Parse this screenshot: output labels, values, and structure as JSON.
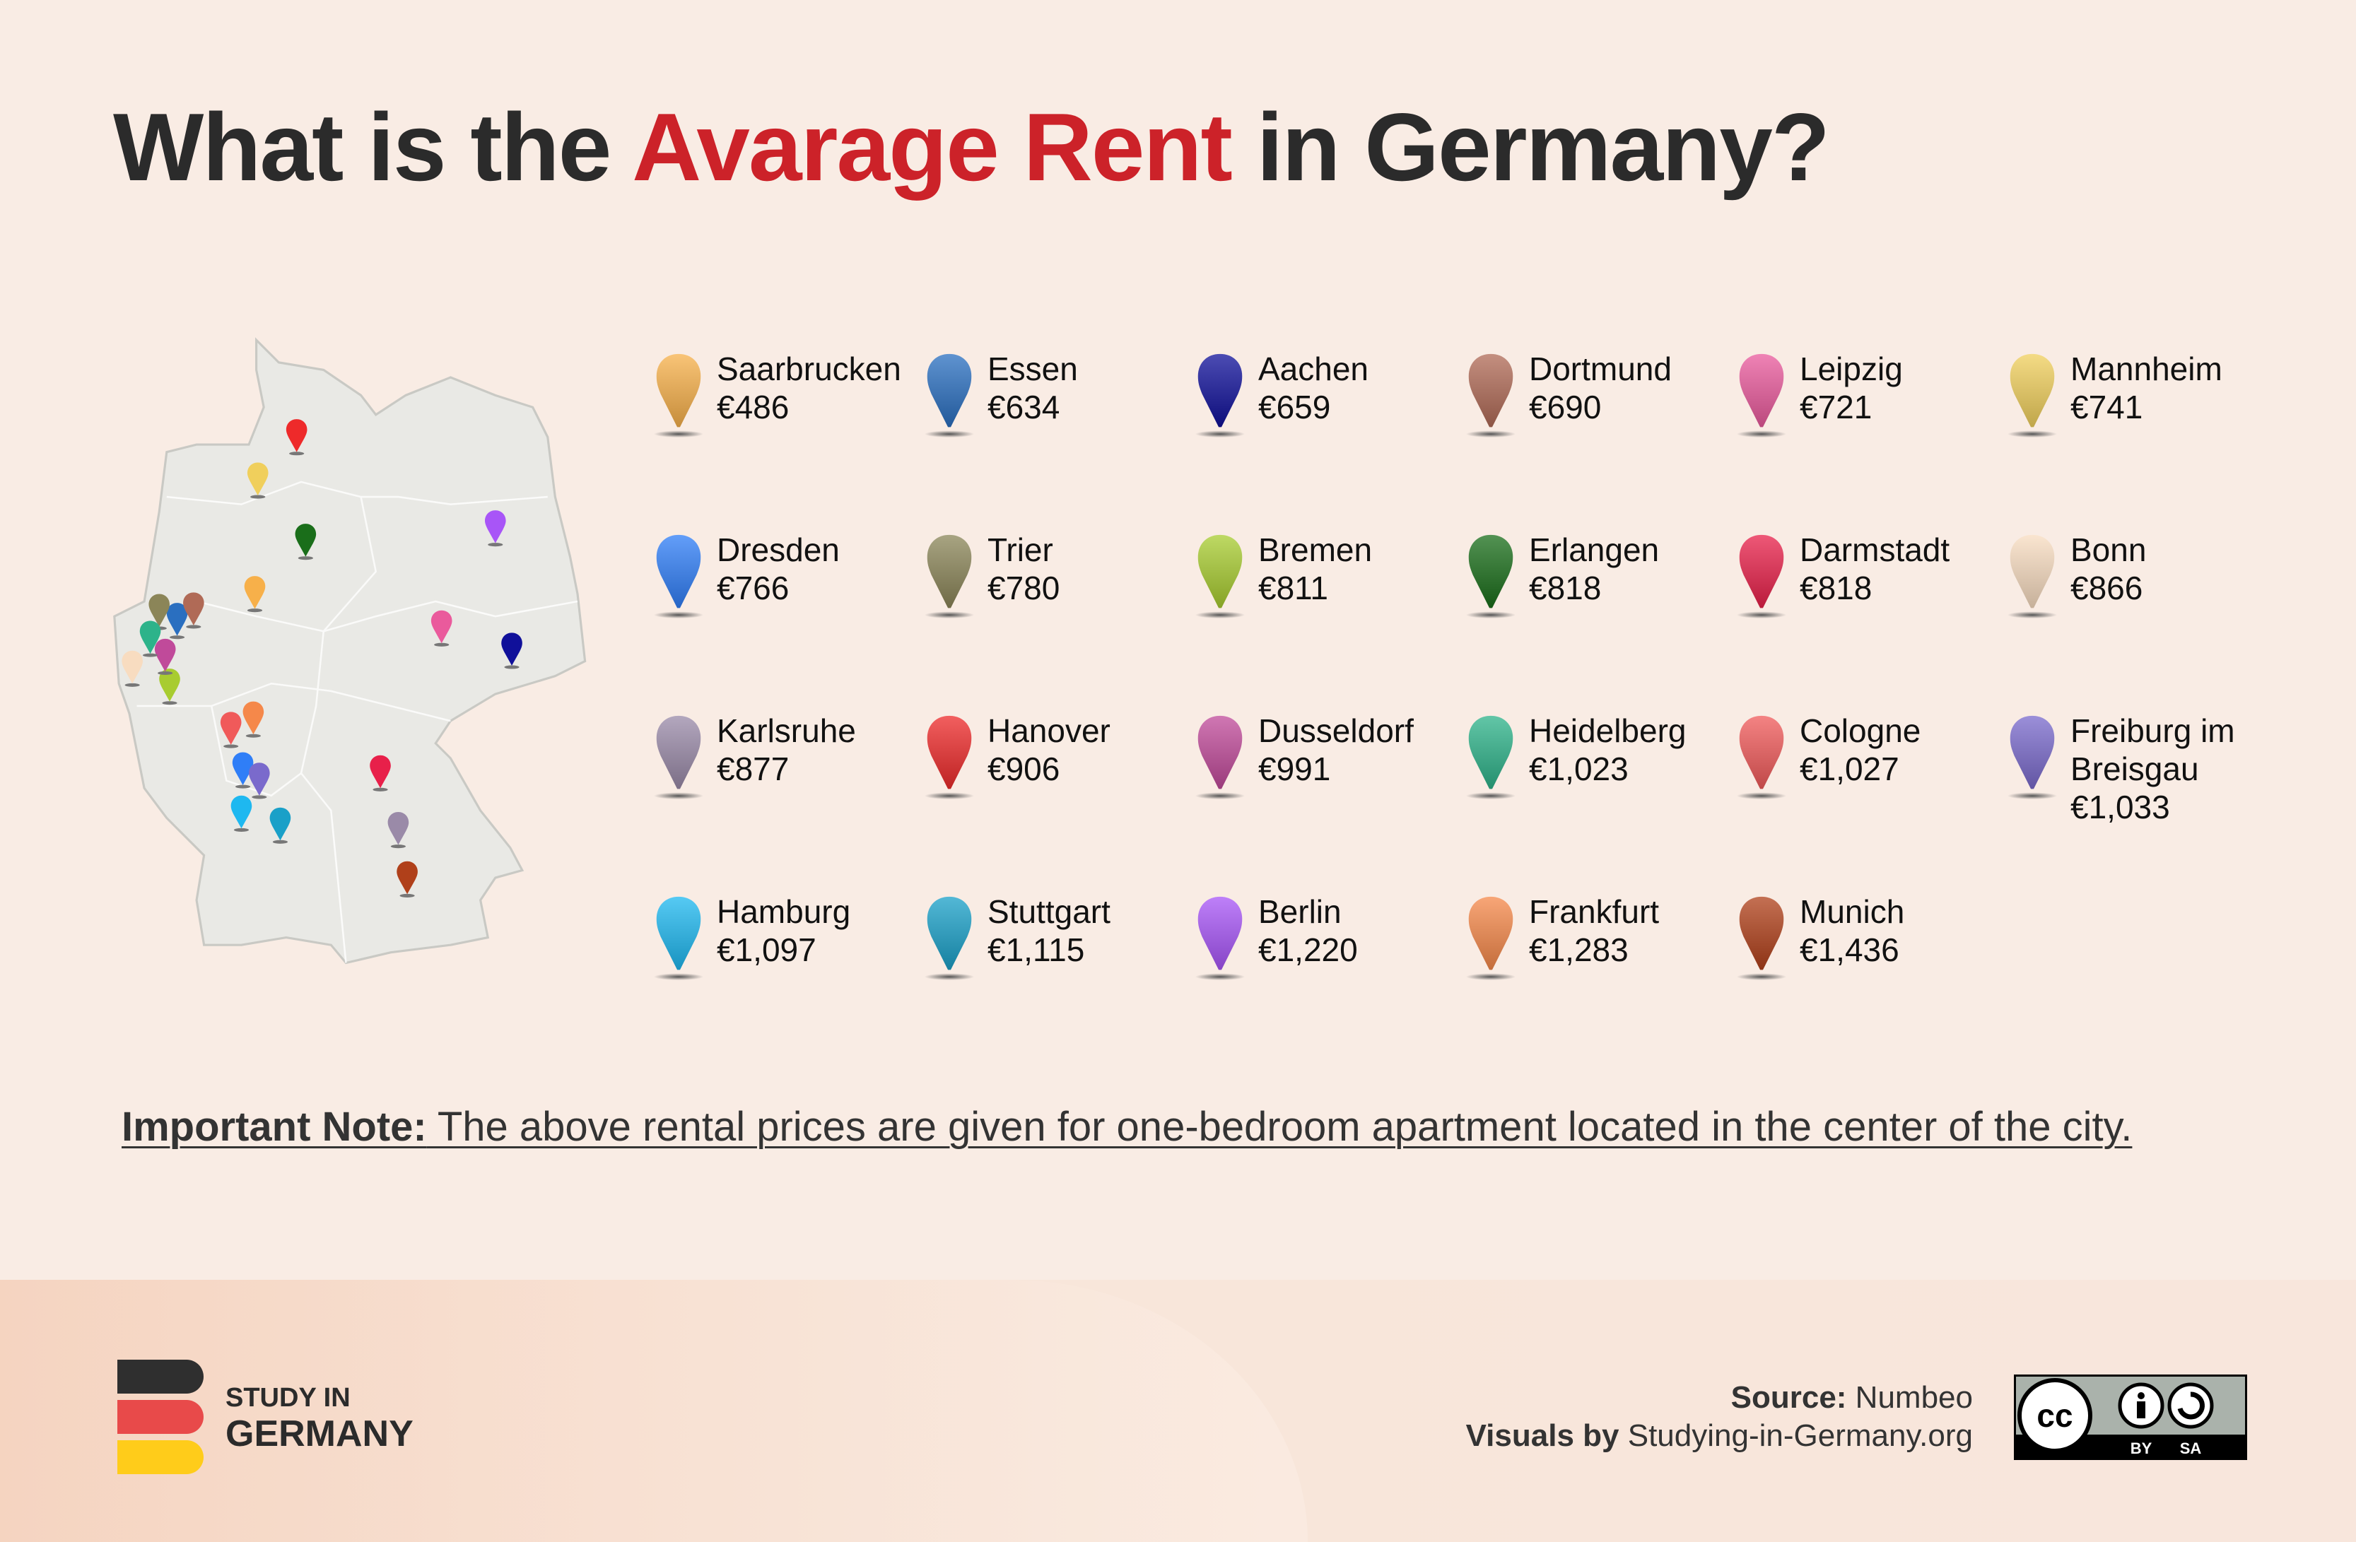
{
  "title": {
    "part1": "What is the ",
    "accent": "Avarage Rent",
    "part2": " in Germany?"
  },
  "colors": {
    "accent": "#cc2229",
    "text": "#2b2b2b",
    "background": "#f9ece4",
    "map_fill": "#e9e9e5"
  },
  "cities": [
    {
      "name": "Saarbrucken",
      "rent": "€486",
      "color": "#f7b04a"
    },
    {
      "name": "Essen",
      "rent": "€634",
      "color": "#2a6fc0"
    },
    {
      "name": "Aachen",
      "rent": "€659",
      "color": "#10109a"
    },
    {
      "name": "Dortmund",
      "rent": "€690",
      "color": "#b06a56"
    },
    {
      "name": "Leipzig",
      "rent": "€721",
      "color": "#ea5a9c"
    },
    {
      "name": "Mannheim",
      "rent": "€741",
      "color": "#f0cf5c"
    },
    {
      "name": "Dresden",
      "rent": "€766",
      "color": "#2f7ef7"
    },
    {
      "name": "Trier",
      "rent": "€780",
      "color": "#8b8558"
    },
    {
      "name": "Bremen",
      "rent": "€811",
      "color": "#a8cc30"
    },
    {
      "name": "Erlangen",
      "rent": "€818",
      "color": "#1a6e1a"
    },
    {
      "name": "Darmstadt",
      "rent": "€818",
      "color": "#e8204a"
    },
    {
      "name": "Bonn",
      "rent": "€866",
      "color": "#f8dcc0"
    },
    {
      "name": "Karlsruhe",
      "rent": "€877",
      "color": "#9a8aa8"
    },
    {
      "name": "Hanover",
      "rent": "€906",
      "color": "#ee2a2a"
    },
    {
      "name": "Dusseldorf",
      "rent": "€991",
      "color": "#c04a9a"
    },
    {
      "name": "Heidelberg",
      "rent": "€1,023",
      "color": "#2db38a"
    },
    {
      "name": "Cologne",
      "rent": "€1,027",
      "color": "#f05a5a"
    },
    {
      "name": "Freiburg im Breisgau",
      "rent": "€1,033",
      "color": "#7a6acc"
    },
    {
      "name": "Hamburg",
      "rent": "€1,097",
      "color": "#1eb8f0"
    },
    {
      "name": "Stuttgart",
      "rent": "€1,115",
      "color": "#1aa0c8"
    },
    {
      "name": "Berlin",
      "rent": "€1,220",
      "color": "#a855f7"
    },
    {
      "name": "Frankfurt",
      "rent": "€1,283",
      "color": "#f5884a"
    },
    {
      "name": "Munich",
      "rent": "€1,436",
      "color": "#b0401a"
    }
  ],
  "note": {
    "label": "Important Note:",
    "text": " The above rental prices are given for one-bedroom apartment located in the center of the city."
  },
  "footer": {
    "logo_line1": "STUDY IN",
    "logo_line2": "GERMANY",
    "flag_colors": [
      "#2f2f2f",
      "#e84a4a",
      "#ffcc1a"
    ],
    "source_label": "Source:",
    "source_value": " Numbeo",
    "visuals_label": "Visuals by",
    "visuals_value": " Studying-in-Germany.org",
    "license": {
      "by": "BY",
      "sa": "SA"
    }
  }
}
